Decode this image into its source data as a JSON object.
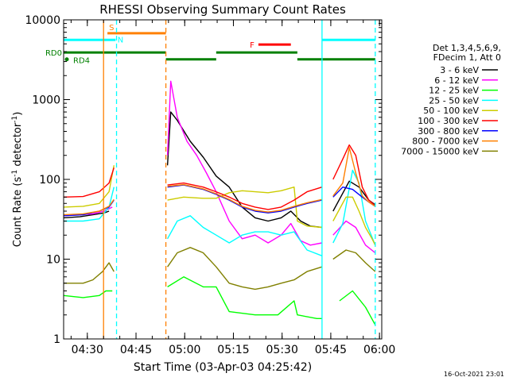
{
  "chart_data": {
    "type": "line",
    "title": "RHESSI Observing Summary Count Rates",
    "xlabel": "Start Time (03-Apr-03 04:25:42)",
    "ylabel_main": "Count Rate (s",
    "ylabel_sup1": "-1",
    "ylabel_mid": " detector",
    "ylabel_sup2": "-1",
    "ylabel_end": ")",
    "x_unit": "minutes after 04:25:42",
    "x_range": [
      -3,
      95
    ],
    "y_range": [
      1,
      10000
    ],
    "y_scale": "log",
    "footer_date": "16-Oct-2021 23:01",
    "x_ticks": [
      {
        "label": "04:30",
        "x": 4.3
      },
      {
        "label": "04:45",
        "x": 19.3
      },
      {
        "label": "05:00",
        "x": 34.3
      },
      {
        "label": "05:15",
        "x": 49.3
      },
      {
        "label": "05:30",
        "x": 64.3
      },
      {
        "label": "05:45",
        "x": 79.3
      },
      {
        "label": "06:00",
        "x": 94.3
      }
    ],
    "y_ticks": [
      {
        "label": "1",
        "y": 1
      },
      {
        "label": "10",
        "y": 10
      },
      {
        "label": "100",
        "y": 100
      },
      {
        "label": "1000",
        "y": 1000
      },
      {
        "label": "10000",
        "y": 10000
      }
    ],
    "legend_header": [
      "Det 1,3,4,5,6,9,",
      "FDecim 1, Att 0"
    ],
    "flags": [
      {
        "label": "S",
        "color": "#ff8000",
        "y": 6800,
        "segments": [
          [
            10.5,
            28.5
          ]
        ]
      },
      {
        "label": "N",
        "color": "#00ffff",
        "y": 5600,
        "segments": [
          [
            -3,
            13
          ],
          [
            76.5,
            93
          ]
        ]
      },
      {
        "label": "F",
        "color": "#ff0000",
        "y": 4900,
        "segments": [
          [
            57,
            67
          ]
        ]
      },
      {
        "label": "RD0",
        "color": "#008000",
        "y": 3900,
        "segments": [
          [
            -3,
            28.5
          ],
          [
            44,
            69
          ]
        ]
      },
      {
        "label": "RD4",
        "color": "#008000",
        "y": 3200,
        "segments": [
          [
            28.5,
            44
          ],
          [
            69,
            93
          ]
        ]
      }
    ],
    "vlines": [
      {
        "x": 9.3,
        "color": "#ff8000",
        "style": "solid"
      },
      {
        "x": 13.3,
        "color": "#00ffff",
        "style": "dashed"
      },
      {
        "x": 28.5,
        "color": "#ff8000",
        "style": "dashed"
      },
      {
        "x": 76.6,
        "color": "#00ffff",
        "style": "solid"
      },
      {
        "x": 93.0,
        "color": "#00ffff",
        "style": "dashed"
      }
    ],
    "series": [
      {
        "name": "3 - 6 keV",
        "color": "#000000",
        "x": [
          -3,
          2,
          6,
          9.5,
          11,
          11.5,
          28.8,
          29,
          30,
          32,
          36,
          40,
          44,
          48,
          52,
          56,
          60,
          64,
          67,
          70,
          73,
          76.6,
          77,
          80,
          85,
          88,
          91,
          93
        ],
        "y": [
          33,
          34,
          36,
          38,
          40,
          null,
          null,
          150,
          700,
          550,
          300,
          190,
          110,
          80,
          45,
          33,
          30,
          33,
          40,
          30,
          26,
          25,
          null,
          40,
          95,
          80,
          55,
          48
        ]
      },
      {
        "name": "6 - 12 keV",
        "color": "#ff00ff",
        "x": [
          -3,
          2,
          6,
          9.5,
          12,
          12.5,
          28.8,
          29,
          30,
          32,
          35,
          38,
          41,
          44,
          48,
          52,
          56,
          60,
          64,
          67,
          70,
          73,
          76.6,
          77,
          80,
          84,
          87,
          90,
          93
        ],
        "y": [
          35,
          36,
          37,
          40,
          45,
          null,
          null,
          200,
          1700,
          600,
          300,
          200,
          120,
          70,
          30,
          18,
          20,
          16,
          20,
          28,
          17,
          15,
          16,
          null,
          20,
          30,
          25,
          15,
          12
        ]
      },
      {
        "name": "12 - 25 keV",
        "color": "#00ff00",
        "x": [
          -3,
          3,
          8,
          10,
          12,
          12.5,
          28.8,
          29,
          34,
          40,
          44,
          48,
          56,
          63,
          68,
          69,
          75,
          76.6,
          77,
          82,
          86,
          90,
          93
        ],
        "y": [
          3.5,
          3.3,
          3.5,
          4,
          4,
          null,
          null,
          4.5,
          6,
          4.5,
          4.5,
          2.2,
          2,
          2,
          3,
          2,
          1.8,
          1.8,
          null,
          3,
          4,
          2.5,
          1.5
        ]
      },
      {
        "name": "25 - 50 keV",
        "color": "#00ffff",
        "x": [
          -3,
          3,
          8,
          11,
          12.5,
          13,
          28.8,
          29,
          32,
          36,
          40,
          44,
          48,
          52,
          56,
          60,
          64,
          68,
          72,
          76.6,
          77,
          80,
          83,
          86,
          88,
          90,
          93
        ],
        "y": [
          30,
          30,
          32,
          45,
          80,
          null,
          null,
          18,
          30,
          35,
          25,
          20,
          16,
          20,
          22,
          22,
          20,
          22,
          13,
          11,
          null,
          16,
          28,
          130,
          90,
          30,
          15
        ]
      },
      {
        "name": "50 - 100 keV",
        "color": "#cccc00",
        "x": [
          -3,
          3,
          8,
          11,
          12.5,
          13,
          28.8,
          29,
          34,
          40,
          44,
          48,
          52,
          56,
          60,
          64,
          68,
          69,
          72,
          76.6,
          77,
          80,
          84,
          86,
          88,
          90,
          92,
          93
        ],
        "y": [
          45,
          46,
          50,
          70,
          150,
          null,
          null,
          55,
          60,
          58,
          58,
          68,
          72,
          70,
          68,
          72,
          80,
          30,
          26,
          25,
          null,
          30,
          60,
          60,
          40,
          25,
          18,
          15
        ]
      },
      {
        "name": "100 - 300 keV",
        "color": "#ff0000",
        "x": [
          -3,
          3,
          8,
          11,
          12.5,
          13,
          28.8,
          29,
          34,
          40,
          44,
          48,
          52,
          56,
          60,
          64,
          68,
          72,
          76.6,
          77,
          80,
          83,
          85,
          87,
          89,
          91,
          93
        ],
        "y": [
          60,
          61,
          70,
          90,
          140,
          null,
          null,
          85,
          90,
          80,
          70,
          60,
          50,
          45,
          42,
          45,
          55,
          70,
          80,
          null,
          100,
          180,
          270,
          200,
          80,
          55,
          47
        ]
      },
      {
        "name": "300 - 800 keV",
        "color": "#0000ff",
        "x": [
          -3,
          3,
          8,
          11,
          12.5,
          13,
          28.8,
          29,
          34,
          40,
          44,
          48,
          52,
          56,
          60,
          64,
          68,
          72,
          76.6,
          77,
          80,
          83,
          86,
          89,
          91,
          93
        ],
        "y": [
          35,
          36,
          40,
          45,
          55,
          null,
          null,
          80,
          85,
          75,
          65,
          55,
          45,
          40,
          38,
          40,
          45,
          50,
          55,
          null,
          60,
          80,
          75,
          60,
          52,
          46
        ]
      },
      {
        "name": "800 - 7000 keV",
        "color": "#ff8000",
        "x": [
          -3,
          3,
          8,
          11,
          12.5,
          13,
          28.8,
          29,
          34,
          40,
          44,
          48,
          52,
          56,
          60,
          64,
          68,
          72,
          76.6,
          77,
          80,
          83,
          85,
          87,
          89,
          91,
          93
        ],
        "y": [
          36,
          37,
          40,
          46,
          56,
          null,
          null,
          82,
          86,
          76,
          66,
          56,
          46,
          41,
          39,
          41,
          46,
          51,
          56,
          null,
          62,
          90,
          250,
          120,
          62,
          52,
          46
        ]
      },
      {
        "name": "7000 - 15000 keV",
        "color": "#808000",
        "x": [
          -3,
          3,
          6,
          9,
          11,
          12.5,
          13,
          28.8,
          29,
          32,
          36,
          40,
          44,
          48,
          52,
          56,
          60,
          64,
          68,
          72,
          76.6,
          77,
          80,
          84,
          87,
          90,
          93
        ],
        "y": [
          5,
          5,
          5.5,
          7,
          9,
          7,
          null,
          null,
          8,
          12,
          14,
          12,
          8,
          5,
          4.5,
          4.2,
          4.5,
          5,
          5.5,
          7,
          8,
          null,
          10,
          13,
          12,
          9,
          7
        ]
      }
    ]
  }
}
